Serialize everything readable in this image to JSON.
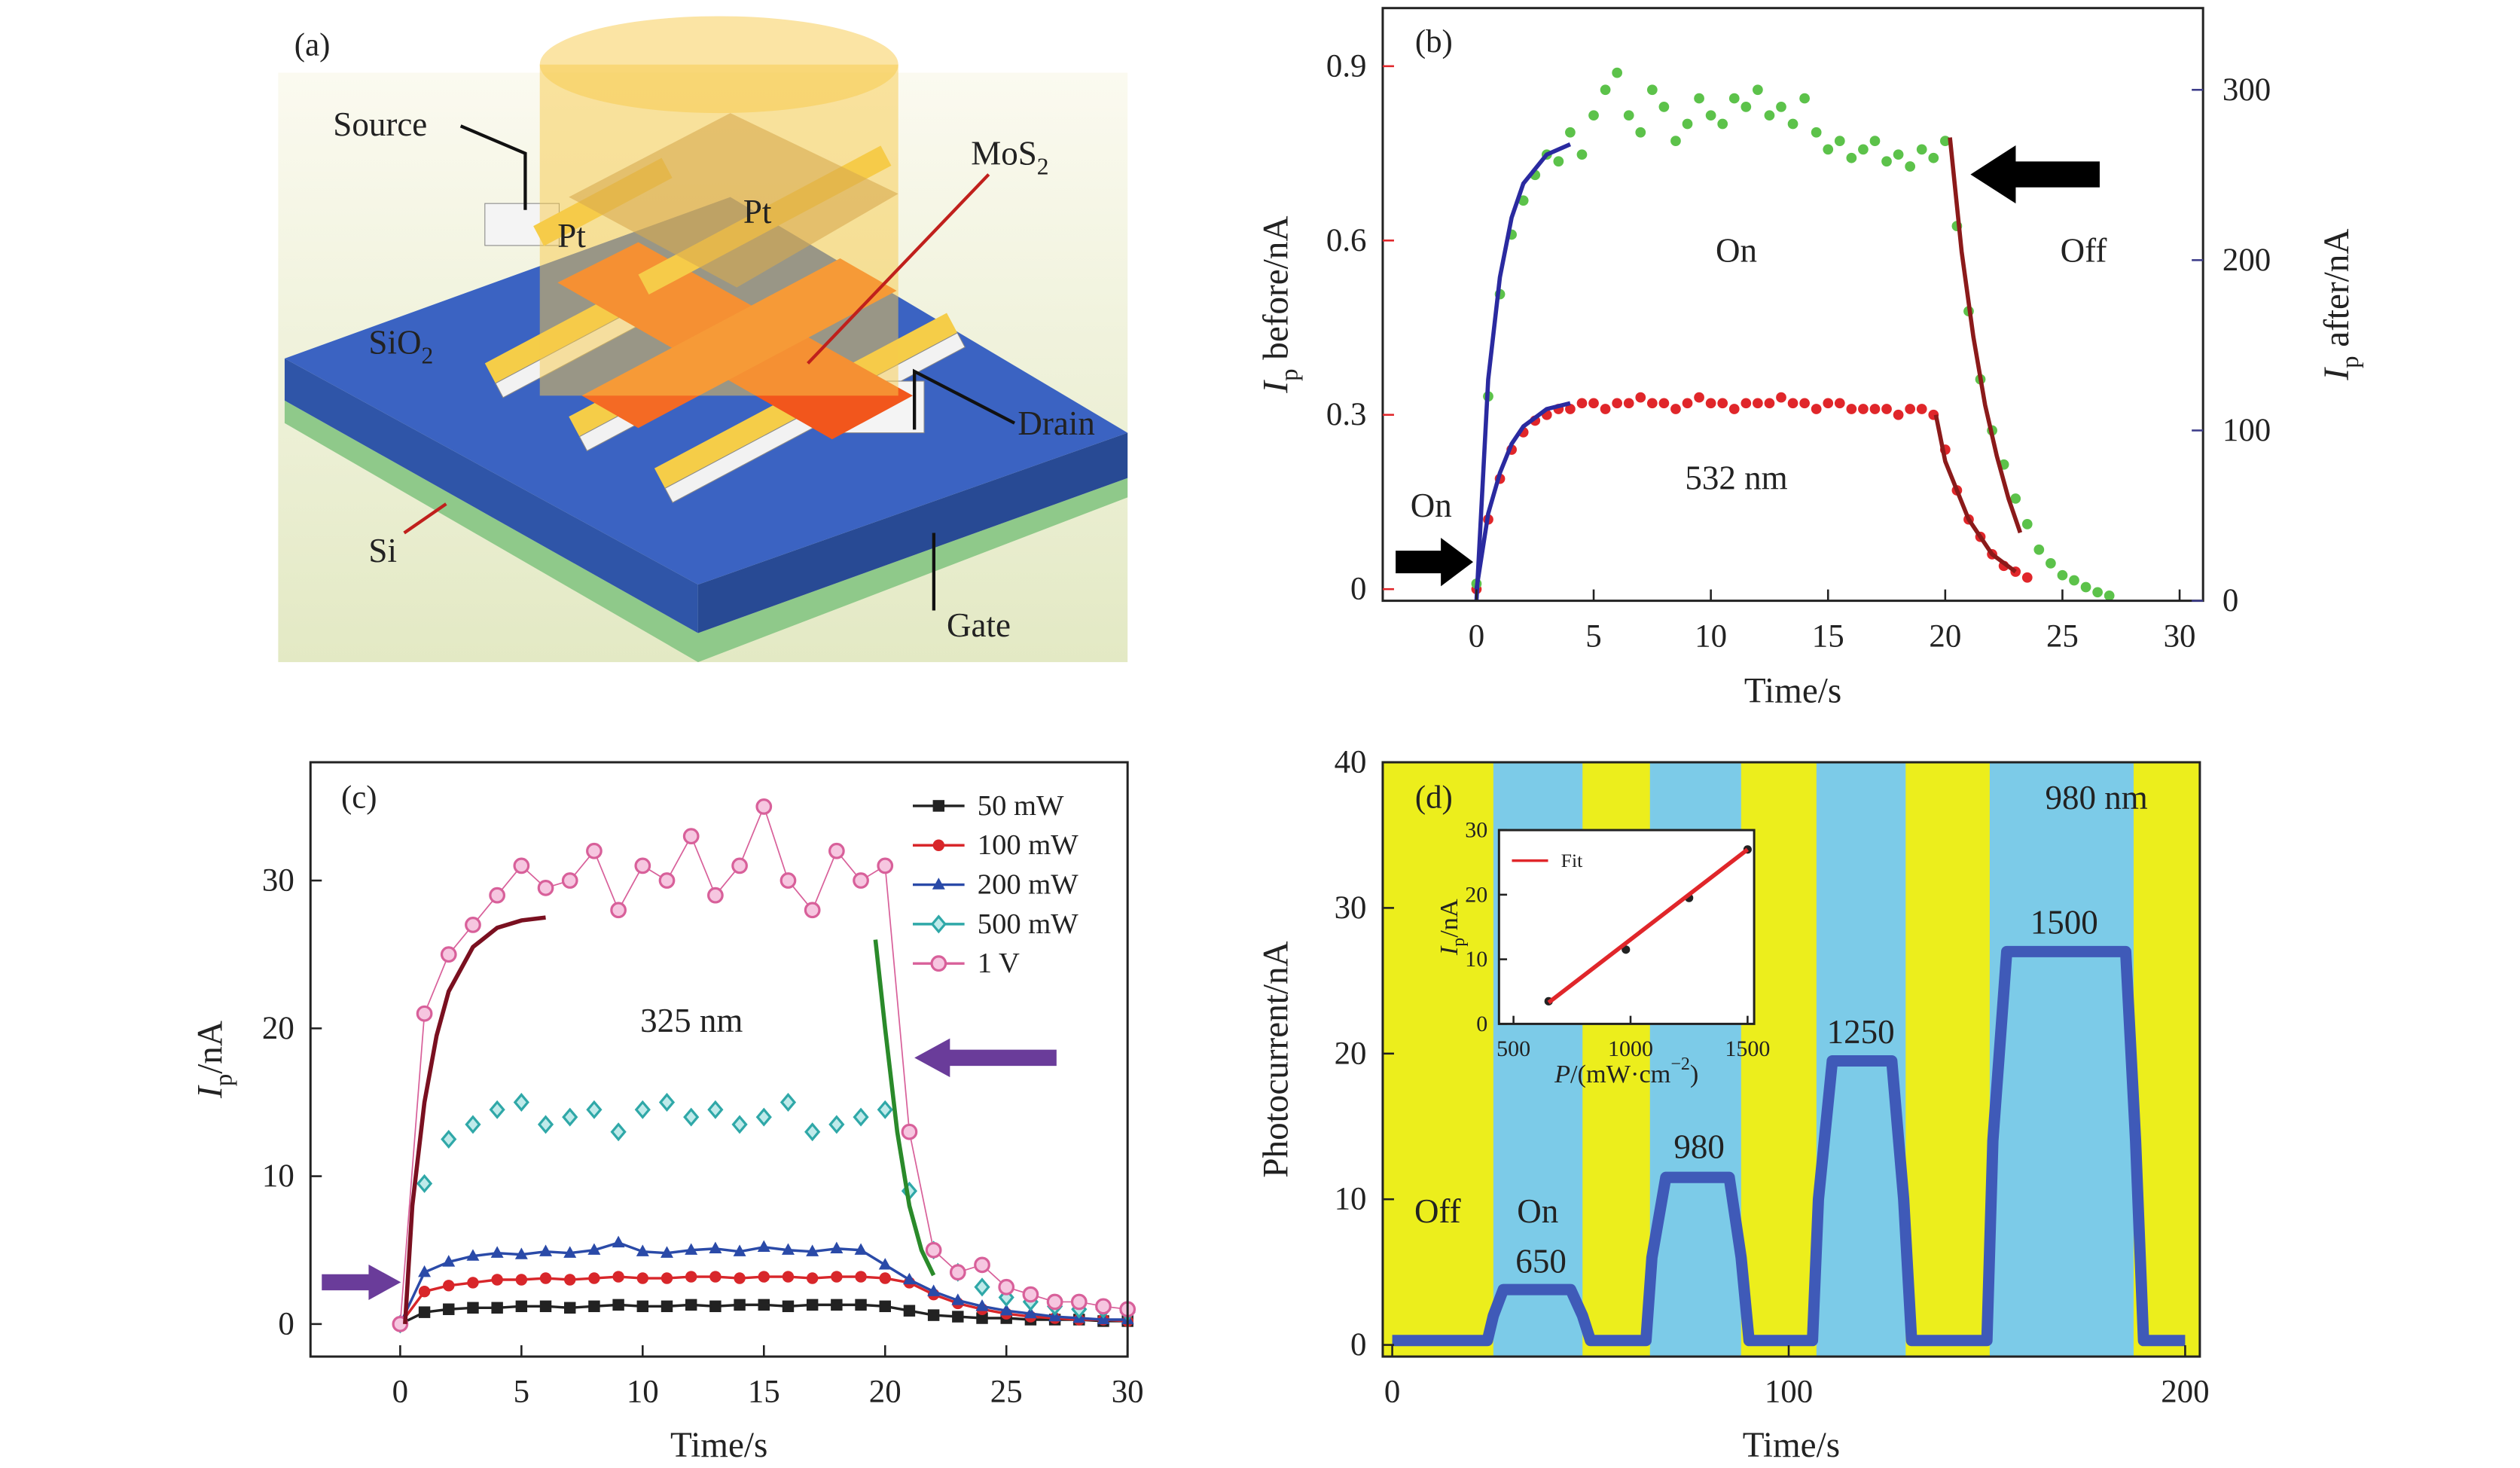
{
  "diagram": {
    "panel_label": "(a)",
    "labels": {
      "source": "Source",
      "pt_left": "Pt",
      "pt_right": "Pt",
      "mos2": [
        "MoS",
        {
          "sub": "2"
        }
      ],
      "sio2": [
        "SiO",
        {
          "sub": "2"
        }
      ],
      "drain": "Drain",
      "si": "Si",
      "gate": "Gate"
    }
  },
  "chart_data": [
    {
      "type": "line",
      "panel_label": "(b)",
      "xlabel": "Time/s",
      "ylabel": [
        {
          "it": "I"
        },
        {
          "sub": "p"
        },
        " before/nA"
      ],
      "y2label": [
        {
          "it": "I"
        },
        {
          "sub": "p"
        },
        " after/nA"
      ],
      "xlim": [
        -4,
        31
      ],
      "xticks": [
        0,
        5,
        10,
        15,
        20,
        25,
        30
      ],
      "ylim": [
        -0.02,
        1.0
      ],
      "yticks": [
        0,
        0.3,
        0.6,
        0.9
      ],
      "y2lim": [
        0,
        348
      ],
      "y2ticks": [
        0,
        100,
        200,
        300
      ],
      "ycolor": "#e0262a",
      "y2color": "#3c3c8a",
      "annotations": [
        {
          "text": "On",
          "color": "#222"
        },
        {
          "text": "Off",
          "color": "#222"
        },
        {
          "text": "532 nm",
          "color": "#222"
        },
        {
          "text": "On",
          "color": "#222"
        }
      ],
      "series": [
        {
          "color": "#e0262a",
          "style": "markers",
          "marker": "circle",
          "axis": "y",
          "x": [
            0,
            0.5,
            1,
            1.5,
            2,
            2.5,
            3,
            3.5,
            4,
            4.5,
            5,
            5.5,
            6,
            6.5,
            7,
            7.5,
            8,
            8.5,
            9,
            9.5,
            10,
            10.5,
            11,
            11.5,
            12,
            12.5,
            13,
            13.5,
            14,
            14.5,
            15,
            15.5,
            16,
            16.5,
            17,
            17.5,
            18,
            18.5,
            19,
            19.5,
            20,
            20.5,
            21,
            21.5,
            22,
            22.5,
            23,
            23.5
          ],
          "values": [
            0,
            0.12,
            0.19,
            0.24,
            0.27,
            0.29,
            0.3,
            0.31,
            0.31,
            0.32,
            0.32,
            0.31,
            0.32,
            0.32,
            0.33,
            0.32,
            0.32,
            0.31,
            0.32,
            0.33,
            0.32,
            0.32,
            0.31,
            0.32,
            0.32,
            0.32,
            0.33,
            0.32,
            0.32,
            0.31,
            0.32,
            0.32,
            0.31,
            0.31,
            0.31,
            0.31,
            0.3,
            0.31,
            0.31,
            0.3,
            0.24,
            0.17,
            0.12,
            0.09,
            0.06,
            0.04,
            0.03,
            0.02
          ]
        },
        {
          "color": "#5cc24a",
          "style": "markers",
          "marker": "circle",
          "axis": "y2",
          "x": [
            0,
            0.5,
            1,
            1.5,
            2,
            2.5,
            3,
            3.5,
            4,
            4.5,
            5,
            5.5,
            6,
            6.5,
            7,
            7.5,
            8,
            8.5,
            9,
            9.5,
            10,
            10.5,
            11,
            11.5,
            12,
            12.5,
            13,
            13.5,
            14,
            14.5,
            15,
            15.5,
            16,
            16.5,
            17,
            17.5,
            18,
            18.5,
            19,
            19.5,
            20,
            20.5,
            21,
            21.5,
            22,
            22.5,
            23,
            23.5,
            24,
            24.5,
            25,
            25.5,
            26,
            26.5,
            27
          ],
          "values": [
            10,
            120,
            180,
            215,
            235,
            250,
            262,
            258,
            275,
            262,
            285,
            300,
            310,
            285,
            275,
            300,
            290,
            270,
            280,
            295,
            285,
            280,
            295,
            290,
            300,
            285,
            290,
            280,
            295,
            275,
            265,
            270,
            260,
            265,
            270,
            258,
            262,
            255,
            265,
            260,
            270,
            220,
            170,
            130,
            100,
            80,
            60,
            45,
            30,
            22,
            15,
            12,
            8,
            5,
            3
          ]
        },
        {
          "color": "#2a2aa0",
          "style": "line",
          "axis": "y",
          "x": [
            0,
            0.5,
            1,
            1.5,
            2,
            3,
            4
          ],
          "values": [
            0,
            0.13,
            0.2,
            0.25,
            0.28,
            0.31,
            0.32
          ]
        },
        {
          "color": "#2a2aa0",
          "style": "line",
          "axis": "y2",
          "x": [
            0,
            0.5,
            1,
            1.5,
            2,
            3,
            4
          ],
          "values": [
            0,
            130,
            190,
            225,
            245,
            262,
            268
          ]
        },
        {
          "color": "#8b1a1a",
          "style": "line",
          "axis": "y",
          "x": [
            19.6,
            20,
            21,
            22,
            23
          ],
          "values": [
            0.3,
            0.22,
            0.12,
            0.06,
            0.03
          ]
        },
        {
          "color": "#8b1a1a",
          "style": "line",
          "axis": "y2",
          "x": [
            20.2,
            20.7,
            21.2,
            21.7,
            22.2,
            22.7,
            23.2
          ],
          "values": [
            272,
            205,
            155,
            115,
            85,
            60,
            40
          ]
        }
      ]
    },
    {
      "type": "line",
      "panel_label": "(c)",
      "xlabel": "Time/s",
      "ylabel": [
        {
          "it": "I"
        },
        {
          "sub": "p"
        },
        "/nA"
      ],
      "xlim": [
        -3.7,
        30
      ],
      "xticks": [
        0,
        5,
        10,
        15,
        20,
        25,
        30
      ],
      "ylim": [
        -2.2,
        38
      ],
      "yticks": [
        0,
        10,
        20,
        30
      ],
      "legend": "upper right",
      "annotations": [
        {
          "text": "325 nm",
          "color": "#222"
        }
      ],
      "x": [
        0,
        1,
        2,
        3,
        4,
        5,
        6,
        7,
        8,
        9,
        10,
        11,
        12,
        13,
        14,
        15,
        16,
        17,
        18,
        19,
        20,
        21,
        22,
        23,
        24,
        25,
        26,
        27,
        28,
        29,
        30
      ],
      "series": [
        {
          "name": "50 mW",
          "color": "#222222",
          "style": "line+markers",
          "marker": "square",
          "values": [
            0,
            0.8,
            1.0,
            1.1,
            1.1,
            1.2,
            1.2,
            1.1,
            1.2,
            1.3,
            1.2,
            1.2,
            1.3,
            1.2,
            1.3,
            1.3,
            1.2,
            1.3,
            1.3,
            1.3,
            1.2,
            0.9,
            0.6,
            0.5,
            0.4,
            0.4,
            0.3,
            0.3,
            0.3,
            0.2,
            0.2
          ]
        },
        {
          "name": "100 mW",
          "color": "#d8262a",
          "style": "line+markers",
          "marker": "circle",
          "values": [
            0,
            2.2,
            2.6,
            2.8,
            3.0,
            3.0,
            3.1,
            3.0,
            3.1,
            3.2,
            3.1,
            3.1,
            3.2,
            3.2,
            3.1,
            3.2,
            3.2,
            3.1,
            3.2,
            3.2,
            3.1,
            2.8,
            2.0,
            1.4,
            1.0,
            0.7,
            0.5,
            0.4,
            0.3,
            0.3,
            0.2
          ]
        },
        {
          "name": "200 mW",
          "color": "#2a4aa8",
          "style": "line+markers",
          "marker": "triangle",
          "values": [
            0,
            3.5,
            4.2,
            4.6,
            4.8,
            4.7,
            4.9,
            4.8,
            5.0,
            5.5,
            4.9,
            4.8,
            5.0,
            5.1,
            4.9,
            5.2,
            5.0,
            4.9,
            5.1,
            5.0,
            4.0,
            3.0,
            2.2,
            1.6,
            1.2,
            0.9,
            0.7,
            0.5,
            0.4,
            0.3,
            0.3
          ]
        },
        {
          "name": "500 mW",
          "color": "#2fa8a8",
          "style": "markers",
          "marker": "diamond",
          "values": [
            0,
            9.5,
            12.5,
            13.5,
            14.5,
            15,
            13.5,
            14,
            14.5,
            13,
            14.5,
            15,
            14,
            14.5,
            13.5,
            14,
            15,
            13,
            13.5,
            14,
            14.5,
            9,
            5,
            3.5,
            2.5,
            1.8,
            1.5,
            1.2,
            1.0,
            1.0,
            0.8
          ]
        },
        {
          "name": "1 V",
          "color": "#d8609a",
          "style": "line+markers",
          "marker": "ring",
          "values": [
            0,
            21,
            25,
            27,
            29,
            31,
            29.5,
            30,
            32,
            28,
            31,
            30,
            33,
            29,
            31,
            35,
            30,
            28,
            32,
            30,
            31,
            13,
            5,
            3.5,
            4,
            2.5,
            2,
            1.5,
            1.5,
            1.2,
            1.0
          ]
        },
        {
          "color": "#7a1020",
          "style": "line",
          "x": [
            0.2,
            0.5,
            1,
            1.5,
            2,
            3,
            4,
            5,
            6
          ],
          "values": [
            0,
            8,
            15,
            19.5,
            22.5,
            25.5,
            26.8,
            27.3,
            27.5
          ]
        },
        {
          "color": "#2a8a2a",
          "style": "line",
          "x": [
            19.6,
            20,
            20.5,
            21,
            21.5,
            22
          ],
          "values": [
            26,
            20,
            13,
            8,
            5,
            3.3
          ]
        }
      ]
    },
    {
      "type": "line",
      "panel_label": "(d)",
      "xlabel": "Time/s",
      "ylabel": "Photocurrent/nA",
      "xlim": [
        -2.4,
        203.7
      ],
      "xticks": [
        0,
        100,
        200
      ],
      "ylim": [
        -0.8,
        40
      ],
      "yticks": [
        0,
        10,
        20,
        30,
        40
      ],
      "background_color": "#ecee1c",
      "on_color": "#7ccbe8",
      "on_intervals": [
        [
          25.5,
          48
        ],
        [
          65,
          88
        ],
        [
          107,
          129.5
        ],
        [
          150.7,
          187
        ]
      ],
      "annotations": [
        {
          "text": "Off",
          "color": "#222"
        },
        {
          "text": "On",
          "color": "#222"
        },
        {
          "text": "980 nm",
          "color": "#222"
        },
        {
          "text": "650",
          "color": "#e0262a"
        },
        {
          "text": "980",
          "color": "#e0262a"
        },
        {
          "text": "1250",
          "color": "#e0262a"
        },
        {
          "text": "1500",
          "color": "#e0262a"
        }
      ],
      "series": [
        {
          "color": "#3f5ab8",
          "style": "line",
          "line_width": 7,
          "x": [
            0,
            24,
            25.5,
            28,
            45,
            48,
            50,
            64,
            65.5,
            69,
            85,
            88,
            90,
            106,
            107.5,
            111,
            126,
            129,
            131,
            150,
            151.5,
            155,
            185,
            187.5,
            189.5,
            200
          ],
          "values": [
            0.3,
            0.3,
            2,
            3.8,
            3.8,
            2,
            0.3,
            0.3,
            6,
            11.5,
            11.5,
            6,
            0.3,
            0.3,
            10,
            19.5,
            19.5,
            10,
            0.3,
            0.3,
            14,
            27,
            27,
            14,
            0.3,
            0.3
          ]
        }
      ]
    },
    {
      "type": "scatter",
      "xlabel": [
        {
          "it": "P"
        },
        "/(mW·cm",
        {
          "sup": "−2"
        },
        ")"
      ],
      "ylabel": [
        {
          "it": "I"
        },
        {
          "sub": "p"
        },
        "/nA"
      ],
      "xlim": [
        438,
        1528
      ],
      "xticks": [
        500,
        1000,
        1500
      ],
      "ylim": [
        0,
        30
      ],
      "yticks": [
        0,
        10,
        20,
        30
      ],
      "background_color": "#ffffff",
      "legend": "upper left",
      "series": [
        {
          "color": "#222222",
          "style": "markers",
          "marker": "circle",
          "x": [
            650,
            980,
            1250,
            1500
          ],
          "values": [
            3.5,
            11.5,
            19.5,
            27
          ]
        },
        {
          "name": "Fit",
          "color": "#e0262a",
          "style": "line",
          "x": [
            650,
            1500
          ],
          "values": [
            3.3,
            27
          ]
        }
      ]
    }
  ]
}
